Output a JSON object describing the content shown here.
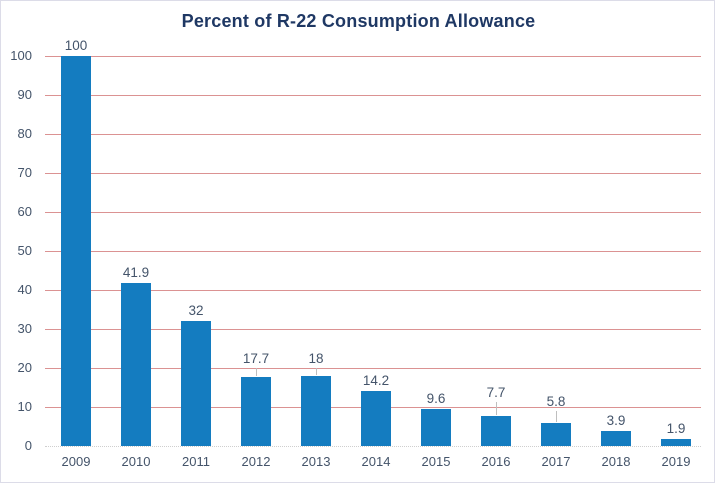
{
  "chart_data": {
    "type": "bar",
    "title": "Percent of R-22 Consumption Allowance",
    "categories": [
      "2009",
      "2010",
      "2011",
      "2012",
      "2013",
      "2014",
      "2015",
      "2016",
      "2017",
      "2018",
      "2019"
    ],
    "values": [
      100,
      41.9,
      32,
      17.7,
      18,
      14.2,
      9.6,
      7.7,
      5.8,
      3.9,
      1.9
    ],
    "xlabel": "",
    "ylabel": "",
    "ylim": [
      0,
      100
    ],
    "ytick_interval": 10,
    "grid": "horizontal",
    "legend": "none",
    "data_labels": "outside-end",
    "label_lifts": {
      "3": 8,
      "4": 7,
      "7": 13,
      "8": 11
    },
    "colors": {
      "bar": "#147cc0",
      "gridline": "#db9292",
      "baseline": "#cfcfcf",
      "title": "#1f3864",
      "axis_text": "#44546a",
      "data_label_text": "#44546a",
      "leader_line": "#bfbfbf",
      "chart_border": "#dcdce8",
      "background": "#ffffff"
    }
  }
}
